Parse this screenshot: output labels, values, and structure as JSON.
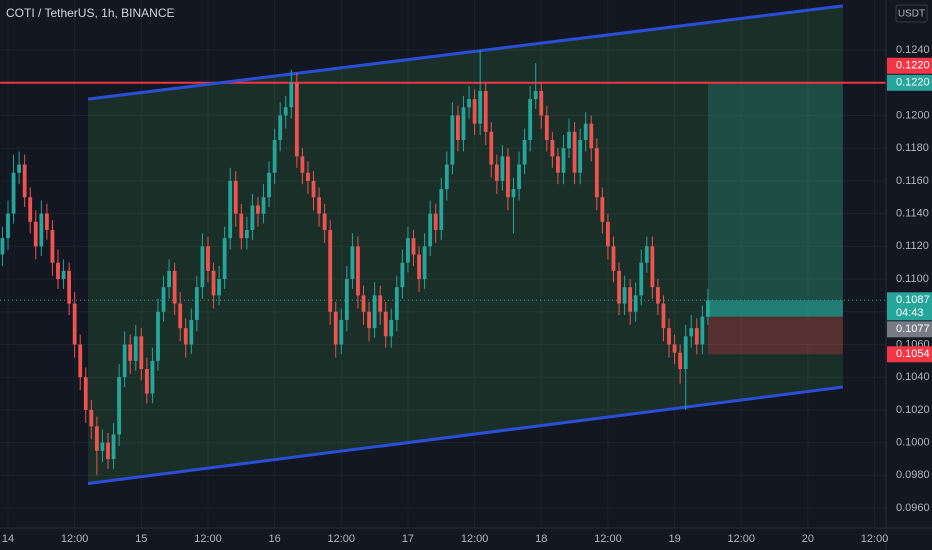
{
  "chart_data": {
    "type": "candlestick",
    "title": "COTI / TetherUS, 1h, BINANCE",
    "unit": "USDT",
    "xlim": [
      -0.44,
      159.06
    ],
    "ylim": [
      0.09478,
      0.12706
    ],
    "xticks": [
      {
        "value": 1,
        "label": "14"
      },
      {
        "value": 13,
        "label": "12:00"
      },
      {
        "value": 25,
        "label": "15"
      },
      {
        "value": 37,
        "label": "12:00"
      },
      {
        "value": 49,
        "label": "16"
      },
      {
        "value": 61,
        "label": "12:00"
      },
      {
        "value": 73,
        "label": "17"
      },
      {
        "value": 85,
        "label": "12:00"
      },
      {
        "value": 97,
        "label": "18"
      },
      {
        "value": 109,
        "label": "12:00"
      },
      {
        "value": 121,
        "label": "19"
      },
      {
        "value": 133,
        "label": "12:00"
      },
      {
        "value": 145,
        "label": "20"
      },
      {
        "value": 157,
        "label": "12:00"
      }
    ],
    "yticks": [
      {
        "value": 0.096,
        "label": "0.0960"
      },
      {
        "value": 0.098,
        "label": "0.0980"
      },
      {
        "value": 0.1,
        "label": "0.1000"
      },
      {
        "value": 0.102,
        "label": "0.1020"
      },
      {
        "value": 0.104,
        "label": "0.1040"
      },
      {
        "value": 0.106,
        "label": "0.1060"
      },
      {
        "value": 0.108,
        "label": "0.1080"
      },
      {
        "value": 0.11,
        "label": "0.1100"
      },
      {
        "value": 0.112,
        "label": "0.1120"
      },
      {
        "value": 0.114,
        "label": "0.1140"
      },
      {
        "value": 0.116,
        "label": "0.1160"
      },
      {
        "value": 0.118,
        "label": "0.1180"
      },
      {
        "value": 0.12,
        "label": "0.1200"
      },
      {
        "value": 0.122,
        "label": "0.1220"
      },
      {
        "value": 0.124,
        "label": "0.1240"
      }
    ],
    "grid": true,
    "up_color": "#26a69a",
    "down_color": "#ef5350",
    "ohlc": [
      [
        0.1115,
        0.1132,
        0.1108,
        0.1125
      ],
      [
        0.1125,
        0.1148,
        0.1118,
        0.114
      ],
      [
        0.114,
        0.1176,
        0.1134,
        0.1165
      ],
      [
        0.1165,
        0.1178,
        0.1158,
        0.117
      ],
      [
        0.117,
        0.1176,
        0.1144,
        0.115
      ],
      [
        0.115,
        0.1156,
        0.1128,
        0.1135
      ],
      [
        0.1135,
        0.1142,
        0.1112,
        0.112
      ],
      [
        0.112,
        0.1148,
        0.1114,
        0.114
      ],
      [
        0.114,
        0.1146,
        0.1124,
        0.113
      ],
      [
        0.113,
        0.1136,
        0.1102,
        0.111
      ],
      [
        0.111,
        0.1118,
        0.1094,
        0.11
      ],
      [
        0.11,
        0.1112,
        0.1094,
        0.1105
      ],
      [
        0.1105,
        0.111,
        0.1078,
        0.1085
      ],
      [
        0.1085,
        0.1092,
        0.1052,
        0.106
      ],
      [
        0.106,
        0.1066,
        0.1032,
        0.104
      ],
      [
        0.104,
        0.1046,
        0.1012,
        0.102
      ],
      [
        0.102,
        0.1026,
        0.1002,
        0.101
      ],
      [
        0.101,
        0.1016,
        0.098,
        0.0995
      ],
      [
        0.0995,
        0.1008,
        0.0988,
        0.1
      ],
      [
        0.1,
        0.1006,
        0.0984,
        0.099
      ],
      [
        0.099,
        0.1012,
        0.0984,
        0.1005
      ],
      [
        0.1005,
        0.1048,
        0.0998,
        0.104
      ],
      [
        0.104,
        0.1068,
        0.1034,
        0.106
      ],
      [
        0.106,
        0.1066,
        0.1042,
        0.105
      ],
      [
        0.105,
        0.1072,
        0.1044,
        0.1065
      ],
      [
        0.1065,
        0.107,
        0.1038,
        0.1045
      ],
      [
        0.1045,
        0.1052,
        0.1024,
        0.103
      ],
      [
        0.103,
        0.1058,
        0.1024,
        0.105
      ],
      [
        0.105,
        0.1088,
        0.1044,
        0.108
      ],
      [
        0.108,
        0.1102,
        0.1074,
        0.1095
      ],
      [
        0.1095,
        0.1112,
        0.1088,
        0.1105
      ],
      [
        0.1105,
        0.111,
        0.1078,
        0.1085
      ],
      [
        0.1085,
        0.1092,
        0.1062,
        0.107
      ],
      [
        0.107,
        0.1076,
        0.1052,
        0.106
      ],
      [
        0.106,
        0.1082,
        0.1054,
        0.1075
      ],
      [
        0.1075,
        0.1102,
        0.1068,
        0.1095
      ],
      [
        0.1095,
        0.1128,
        0.1088,
        0.112
      ],
      [
        0.112,
        0.1126,
        0.1098,
        0.1105
      ],
      [
        0.1105,
        0.111,
        0.1082,
        0.109
      ],
      [
        0.109,
        0.1108,
        0.1084,
        0.11
      ],
      [
        0.11,
        0.1132,
        0.1094,
        0.1125
      ],
      [
        0.1125,
        0.1168,
        0.1118,
        0.116
      ],
      [
        0.116,
        0.1166,
        0.1132,
        0.114
      ],
      [
        0.114,
        0.1146,
        0.1118,
        0.1125
      ],
      [
        0.1125,
        0.1138,
        0.1118,
        0.113
      ],
      [
        0.113,
        0.1152,
        0.1124,
        0.1145
      ],
      [
        0.1145,
        0.115,
        0.1132,
        0.114
      ],
      [
        0.114,
        0.1158,
        0.1134,
        0.115
      ],
      [
        0.115,
        0.1172,
        0.1144,
        0.1165
      ],
      [
        0.1165,
        0.1192,
        0.1158,
        0.1185
      ],
      [
        0.1185,
        0.1208,
        0.1178,
        0.12
      ],
      [
        0.12,
        0.1212,
        0.1192,
        0.1205
      ],
      [
        0.1205,
        0.1228,
        0.1198,
        0.122
      ],
      [
        0.122,
        0.1226,
        0.1168,
        0.1175
      ],
      [
        0.1175,
        0.118,
        0.1158,
        0.1165
      ],
      [
        0.1165,
        0.1172,
        0.1152,
        0.116
      ],
      [
        0.116,
        0.1166,
        0.1142,
        0.115
      ],
      [
        0.115,
        0.1156,
        0.1132,
        0.114
      ],
      [
        0.114,
        0.1146,
        0.1122,
        0.113
      ],
      [
        0.113,
        0.1136,
        0.1072,
        0.108
      ],
      [
        0.108,
        0.1086,
        0.1052,
        0.106
      ],
      [
        0.106,
        0.1082,
        0.1054,
        0.1075
      ],
      [
        0.1075,
        0.1108,
        0.1068,
        0.11
      ],
      [
        0.11,
        0.1128,
        0.1094,
        0.112
      ],
      [
        0.112,
        0.1126,
        0.1082,
        0.109
      ],
      [
        0.109,
        0.1096,
        0.1072,
        0.108
      ],
      [
        0.108,
        0.1086,
        0.1062,
        0.107
      ],
      [
        0.107,
        0.1098,
        0.1064,
        0.109
      ],
      [
        0.109,
        0.1096,
        0.1072,
        0.108
      ],
      [
        0.108,
        0.1086,
        0.1058,
        0.1065
      ],
      [
        0.1065,
        0.1082,
        0.1058,
        0.1075
      ],
      [
        0.1075,
        0.1102,
        0.1068,
        0.1095
      ],
      [
        0.1095,
        0.1118,
        0.1088,
        0.111
      ],
      [
        0.111,
        0.1132,
        0.1104,
        0.1125
      ],
      [
        0.1125,
        0.113,
        0.1108,
        0.1115
      ],
      [
        0.1115,
        0.112,
        0.1092,
        0.11
      ],
      [
        0.11,
        0.1128,
        0.1094,
        0.112
      ],
      [
        0.112,
        0.1148,
        0.1114,
        0.114
      ],
      [
        0.114,
        0.1146,
        0.1122,
        0.113
      ],
      [
        0.113,
        0.1162,
        0.1124,
        0.1155
      ],
      [
        0.1155,
        0.1178,
        0.1148,
        0.117
      ],
      [
        0.117,
        0.1208,
        0.1164,
        0.12
      ],
      [
        0.12,
        0.1206,
        0.1178,
        0.1185
      ],
      [
        0.1185,
        0.1212,
        0.1178,
        0.1205
      ],
      [
        0.1205,
        0.1218,
        0.1198,
        0.121
      ],
      [
        0.121,
        0.1216,
        0.1188,
        0.1195
      ],
      [
        0.1195,
        0.124,
        0.1188,
        0.1215
      ],
      [
        0.1215,
        0.122,
        0.1182,
        0.119
      ],
      [
        0.119,
        0.1196,
        0.1162,
        0.117
      ],
      [
        0.117,
        0.1176,
        0.1152,
        0.116
      ],
      [
        0.116,
        0.1182,
        0.1154,
        0.1175
      ],
      [
        0.1175,
        0.118,
        0.1142,
        0.115
      ],
      [
        0.115,
        0.1162,
        0.1128,
        0.1155
      ],
      [
        0.1155,
        0.1178,
        0.1148,
        0.117
      ],
      [
        0.117,
        0.1192,
        0.1164,
        0.1185
      ],
      [
        0.1185,
        0.1218,
        0.1178,
        0.121
      ],
      [
        0.121,
        0.1232,
        0.1204,
        0.1215
      ],
      [
        0.1215,
        0.122,
        0.1192,
        0.12
      ],
      [
        0.12,
        0.1206,
        0.1178,
        0.1185
      ],
      [
        0.1185,
        0.119,
        0.1168,
        0.1175
      ],
      [
        0.1175,
        0.118,
        0.1158,
        0.1165
      ],
      [
        0.1165,
        0.1188,
        0.1158,
        0.118
      ],
      [
        0.118,
        0.1198,
        0.1174,
        0.119
      ],
      [
        0.119,
        0.1196,
        0.1158,
        0.1165
      ],
      [
        0.1165,
        0.1192,
        0.1158,
        0.1185
      ],
      [
        0.1185,
        0.1202,
        0.1178,
        0.1195
      ],
      [
        0.1195,
        0.12,
        0.1172,
        0.118
      ],
      [
        0.118,
        0.1186,
        0.1142,
        0.115
      ],
      [
        0.115,
        0.1156,
        0.1128,
        0.1135
      ],
      [
        0.1135,
        0.114,
        0.1112,
        0.112
      ],
      [
        0.112,
        0.1126,
        0.1098,
        0.1105
      ],
      [
        0.1105,
        0.111,
        0.1078,
        0.1085
      ],
      [
        0.1085,
        0.1102,
        0.1078,
        0.1095
      ],
      [
        0.1095,
        0.11,
        0.1072,
        0.108
      ],
      [
        0.108,
        0.1098,
        0.1074,
        0.109
      ],
      [
        0.109,
        0.1118,
        0.1084,
        0.111
      ],
      [
        0.111,
        0.1126,
        0.1104,
        0.112
      ],
      [
        0.112,
        0.1126,
        0.1088,
        0.1095
      ],
      [
        0.1095,
        0.11,
        0.1078,
        0.1085
      ],
      [
        0.1085,
        0.109,
        0.1062,
        0.107
      ],
      [
        0.107,
        0.1076,
        0.1052,
        0.106
      ],
      [
        0.106,
        0.1066,
        0.1048,
        0.1055
      ],
      [
        0.1055,
        0.106,
        0.1036,
        0.1045
      ],
      [
        0.1045,
        0.1072,
        0.102,
        0.1065
      ],
      [
        0.1065,
        0.1078,
        0.1058,
        0.107
      ],
      [
        0.107,
        0.1076,
        0.1054,
        0.106
      ],
      [
        0.106,
        0.1084,
        0.1054,
        0.1077
      ],
      [
        0.1077,
        0.1094,
        0.1072,
        0.1087
      ]
    ],
    "channel": {
      "color": "#2a4fd6",
      "upper": [
        [
          15.4,
          0.121
        ],
        [
          151.3,
          0.1267
        ]
      ],
      "lower": [
        [
          15.4,
          0.0975
        ],
        [
          151.3,
          0.1034
        ]
      ]
    },
    "hline": {
      "price": 0.122,
      "color": "#f23645"
    },
    "position": {
      "x": [
        127,
        151.3
      ],
      "target": 0.122,
      "entry": 0.1077,
      "stop": 0.1054,
      "current": 0.1087
    },
    "price_labels": [
      {
        "value": 0.122,
        "label": "0.1220",
        "color": "#f23645"
      },
      {
        "value": 0.122,
        "label": "0.1220",
        "color": "#26a69a"
      },
      {
        "value": 0.1087,
        "label": "0.1087",
        "color": "#26a69a"
      },
      {
        "value": 0.1077,
        "label": "0.1077",
        "color": "#787b86"
      },
      {
        "value": 0.1054,
        "label": "0.1054",
        "color": "#f23645"
      }
    ],
    "countdown": "04:43"
  }
}
